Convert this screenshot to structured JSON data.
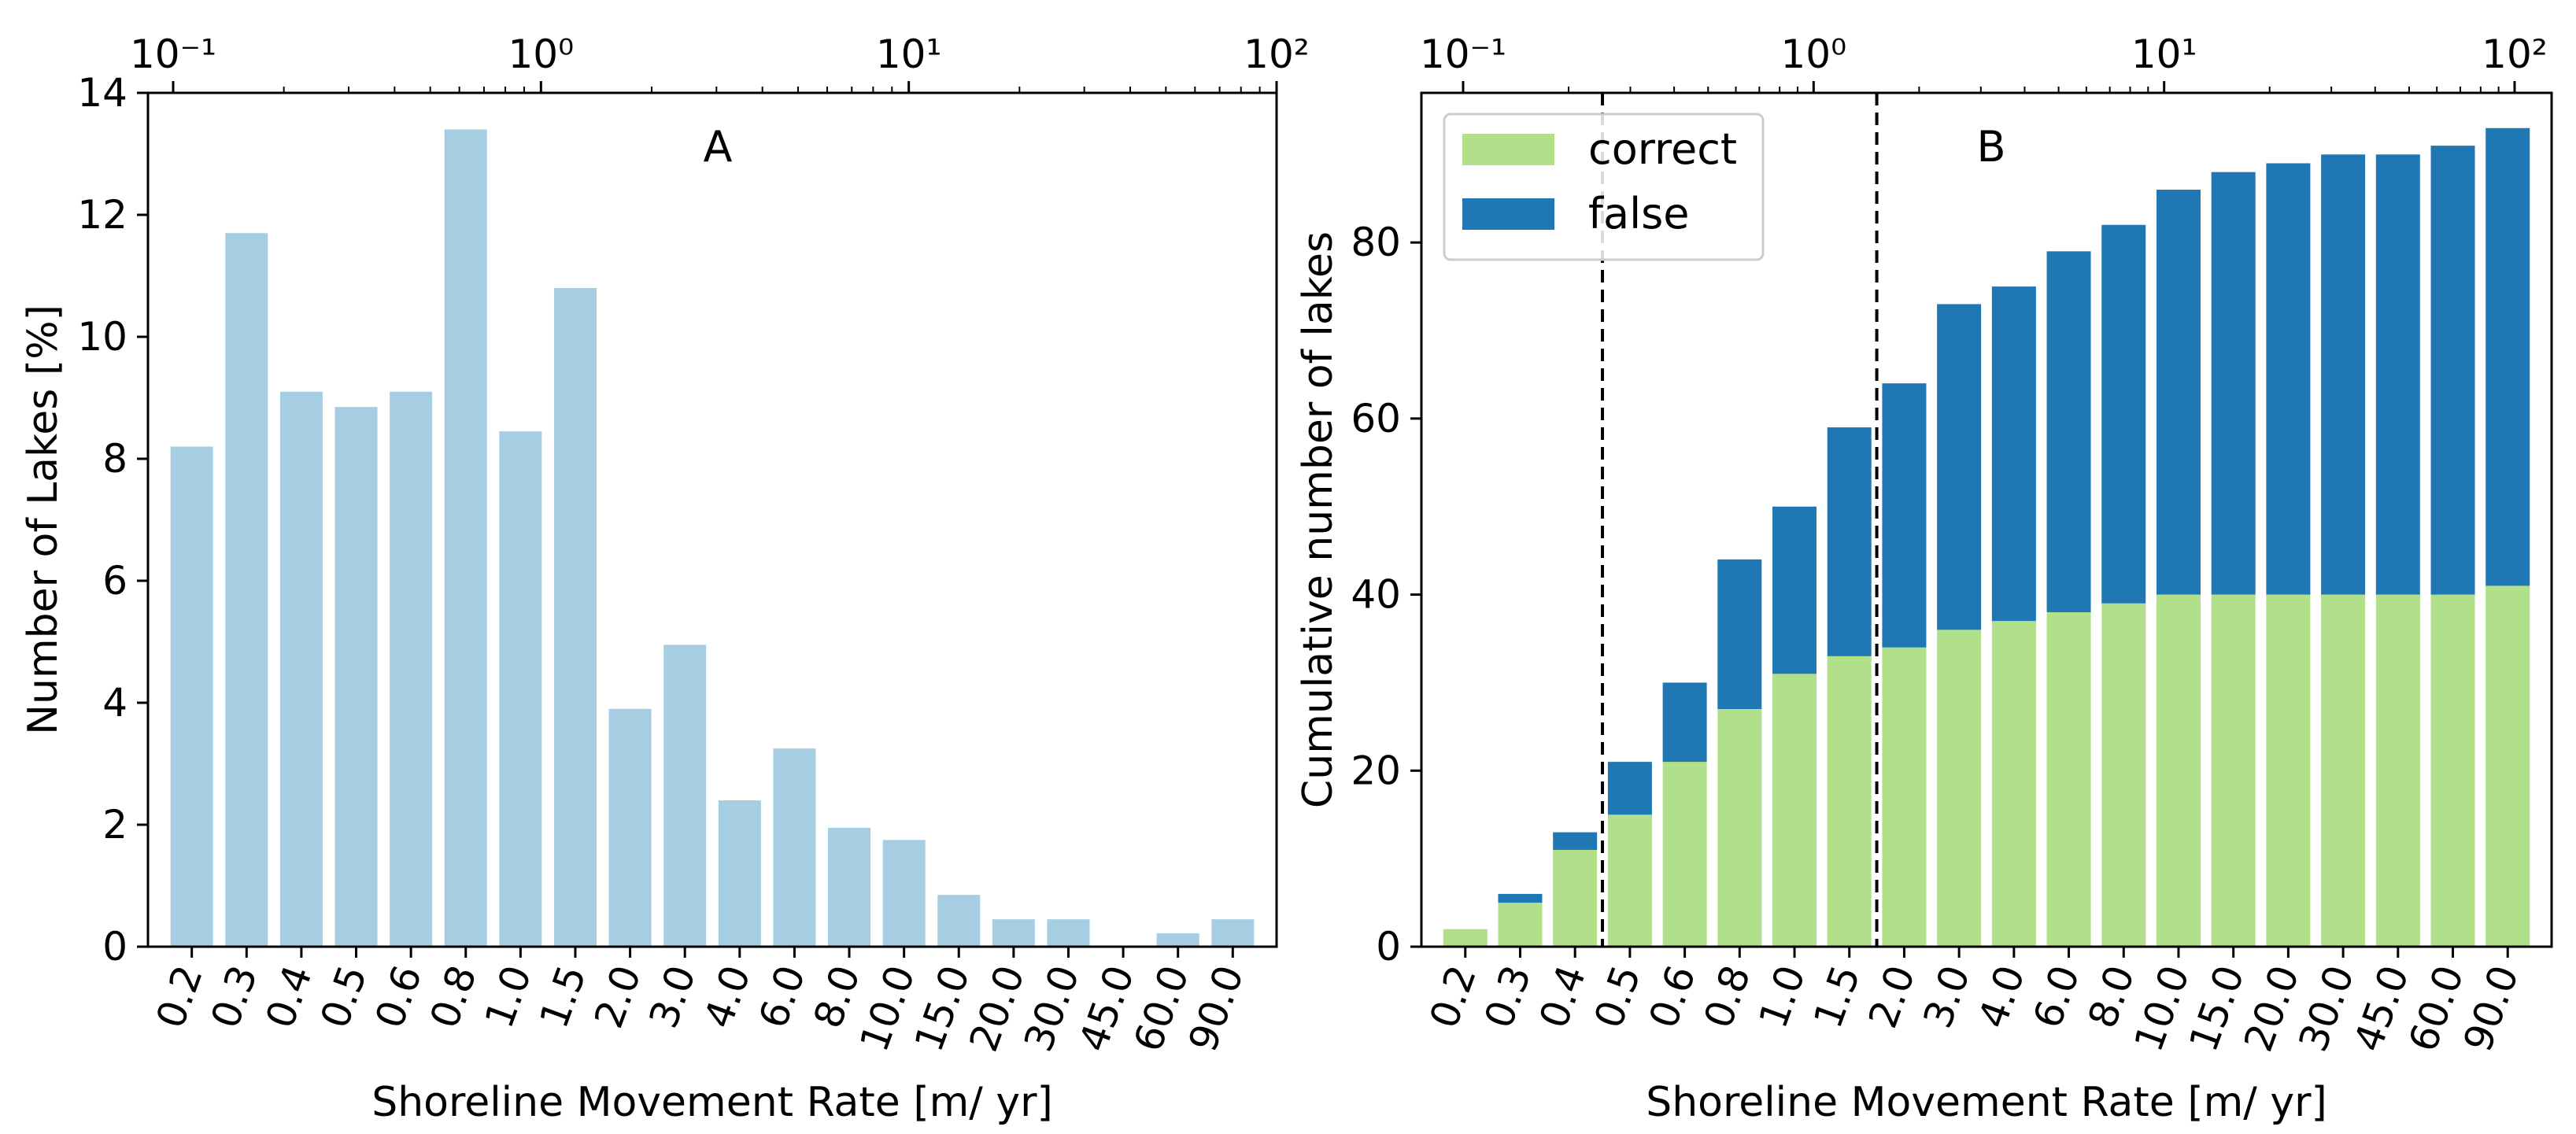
{
  "chart_data": [
    {
      "type": "bar",
      "panel_label": "A",
      "xlabel": "Shoreline Movement Rate [m/ yr]",
      "ylabel": "Number of Lakes [%]",
      "categories": [
        "0.2",
        "0.3",
        "0.4",
        "0.5",
        "0.6",
        "0.8",
        "1.0",
        "1.5",
        "2.0",
        "3.0",
        "4.0",
        "6.0",
        "8.0",
        "10.0",
        "15.0",
        "20.0",
        "30.0",
        "45.0",
        "60.0",
        "90.0"
      ],
      "values": [
        8.2,
        11.7,
        9.1,
        8.85,
        9.1,
        13.4,
        8.45,
        10.8,
        3.9,
        4.95,
        2.4,
        3.25,
        1.95,
        1.75,
        0.85,
        0.45,
        0.45,
        0.0,
        0.22,
        0.45
      ],
      "ylim": [
        0,
        14
      ],
      "yticks": [
        "0",
        "2",
        "4",
        "6",
        "8",
        "10",
        "12",
        "14"
      ],
      "top_axis": {
        "scale": "log",
        "ticks": [
          "10⁻¹",
          "10⁰",
          "10¹",
          "10²"
        ]
      },
      "colors": {
        "bar": "#a6cee3"
      }
    },
    {
      "type": "stacked_bar",
      "panel_label": "B",
      "xlabel": "Shoreline Movement Rate [m/ yr]",
      "ylabel": "Cumulative number of lakes",
      "categories": [
        "0.2",
        "0.3",
        "0.4",
        "0.5",
        "0.6",
        "0.8",
        "1.0",
        "1.5",
        "2.0",
        "3.0",
        "4.0",
        "6.0",
        "8.0",
        "10.0",
        "15.0",
        "20.0",
        "30.0",
        "45.0",
        "60.0",
        "90.0"
      ],
      "series": [
        {
          "name": "correct",
          "color": "#b2df8a",
          "values": [
            2,
            5,
            11,
            15,
            21,
            27,
            31,
            33,
            34,
            36,
            37,
            38,
            39,
            40,
            40,
            40,
            40,
            40,
            40,
            41
          ]
        },
        {
          "name": "false",
          "color": "#1f78b4",
          "values": [
            0,
            1,
            2,
            6,
            9,
            17,
            19,
            26,
            30,
            37,
            38,
            41,
            43,
            46,
            48,
            49,
            50,
            50,
            51,
            52
          ]
        }
      ],
      "ylim": [
        0,
        97
      ],
      "yticks": [
        "0",
        "20",
        "40",
        "60",
        "80"
      ],
      "legend_position": "top-left",
      "vertical_dashed_lines_between": [
        [
          "0.4",
          "0.5"
        ],
        [
          "1.5",
          "2.0"
        ]
      ],
      "top_axis": {
        "scale": "log",
        "ticks": [
          "10⁻¹",
          "10⁰",
          "10¹",
          "10²"
        ]
      }
    }
  ]
}
